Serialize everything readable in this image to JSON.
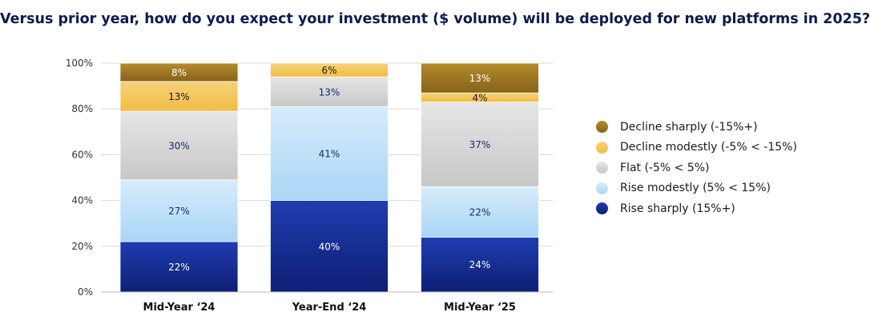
{
  "chart_data": {
    "type": "bar",
    "stacked": true,
    "title": "Versus prior year, how do you expect your investment ($ volume) will be deployed for new platforms in 2025?",
    "categories": [
      "Mid-Year ‘24",
      "Year-End ‘24",
      "Mid-Year ‘25"
    ],
    "ylim": [
      0,
      100
    ],
    "yticks": [
      "0%",
      "20%",
      "40%",
      "60%",
      "80%",
      "100%"
    ],
    "grid": true,
    "legend_position": "right",
    "series": [
      {
        "name": "Rise sharply (15%+)",
        "values": [
          22,
          40,
          24
        ],
        "labels": [
          "22%",
          "40%",
          "24%"
        ],
        "color": "#1f3db1",
        "color_dark": "#0e1f74",
        "label_color": "#ffffff"
      },
      {
        "name": "Rise modestly (5% < 15%)",
        "values": [
          27,
          41,
          22
        ],
        "labels": [
          "27%",
          "41%",
          "22%"
        ],
        "color": "#a9d6f5",
        "color_dark": "#d7ecfb",
        "label_color": "#1a2a6c"
      },
      {
        "name": "Flat (-5% < 5%)",
        "values": [
          30,
          13,
          37
        ],
        "labels": [
          "30%",
          "13%",
          "37%"
        ],
        "color": "#c7c7c7",
        "color_dark": "#e6e6e6",
        "label_color": "#1a2a6c"
      },
      {
        "name": "Decline modestly (-5% < -15%)",
        "values": [
          13,
          6,
          4
        ],
        "labels": [
          "13%",
          "6%",
          "4%"
        ],
        "color": "#f0bd43",
        "color_dark": "#f7d27a",
        "label_color": "#1a1a1a"
      },
      {
        "name": "Decline sharply (-15%+)",
        "values": [
          8,
          0,
          13
        ],
        "labels": [
          "8%",
          "",
          "13%"
        ],
        "color": "#b58b2b",
        "color_dark": "#86621b",
        "label_color": "#ffffff"
      }
    ]
  }
}
